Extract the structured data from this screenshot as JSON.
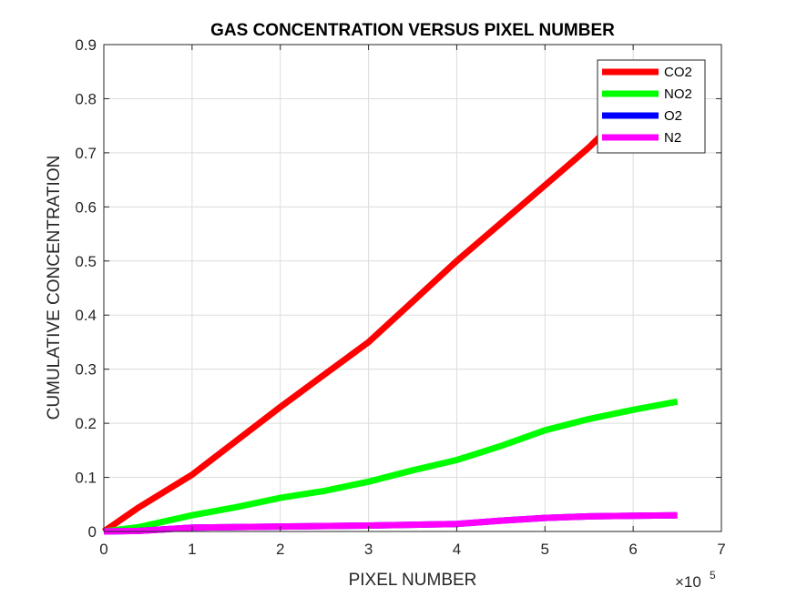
{
  "chart_data": {
    "type": "line",
    "title": "GAS CONCENTRATION VERSUS PIXEL NUMBER",
    "xlabel": "PIXEL NUMBER",
    "ylabel": "CUMULATIVE CONCENTRATION",
    "x_exponent_base": "×10",
    "x_exponent_power": "5",
    "xlim": [
      0,
      7
    ],
    "ylim": [
      0,
      0.9
    ],
    "x_ticks": [
      0,
      1,
      2,
      3,
      4,
      5,
      6,
      7
    ],
    "y_ticks": [
      0,
      0.1,
      0.2,
      0.3,
      0.4,
      0.5,
      0.6,
      0.7,
      0.8,
      0.9
    ],
    "x_tick_labels": [
      "0",
      "1",
      "2",
      "3",
      "4",
      "5",
      "6",
      "7"
    ],
    "y_tick_labels": [
      "0",
      "0.1",
      "0.2",
      "0.3",
      "0.4",
      "0.5",
      "0.6",
      "0.7",
      "0.8",
      "0.9"
    ],
    "grid": true,
    "legend_position": "top-right",
    "series": [
      {
        "name": "CO2",
        "color": "#ff0000",
        "x": [
          0,
          0.4,
          1.0,
          1.6,
          2.0,
          2.5,
          3.0,
          3.5,
          4.0,
          4.5,
          5.0,
          5.5,
          6.0,
          6.5
        ],
        "y": [
          0,
          0.045,
          0.105,
          0.18,
          0.23,
          0.29,
          0.35,
          0.425,
          0.5,
          0.57,
          0.64,
          0.71,
          0.79,
          0.85
        ]
      },
      {
        "name": "NO2",
        "color": "#00ff00",
        "x": [
          0,
          0.4,
          1.0,
          1.5,
          2.0,
          2.5,
          3.0,
          3.5,
          4.0,
          4.5,
          5.0,
          5.5,
          6.0,
          6.5
        ],
        "y": [
          0,
          0.008,
          0.03,
          0.045,
          0.062,
          0.075,
          0.092,
          0.113,
          0.132,
          0.158,
          0.187,
          0.208,
          0.225,
          0.24
        ]
      },
      {
        "name": "O2",
        "color": "#0000ff",
        "x": [
          0,
          0.4,
          1.0,
          2.0,
          3.0,
          4.0,
          4.5,
          5.0,
          5.5,
          6.0,
          6.5
        ],
        "y": [
          0,
          0.001,
          0.007,
          0.009,
          0.011,
          0.014,
          0.02,
          0.025,
          0.028,
          0.029,
          0.03
        ]
      },
      {
        "name": "N2",
        "color": "#ff00ff",
        "x": [
          0,
          0.4,
          1.0,
          2.0,
          3.0,
          4.0,
          4.5,
          5.0,
          5.5,
          6.0,
          6.5
        ],
        "y": [
          0,
          0.001,
          0.007,
          0.009,
          0.011,
          0.014,
          0.02,
          0.025,
          0.028,
          0.029,
          0.03
        ]
      }
    ]
  }
}
